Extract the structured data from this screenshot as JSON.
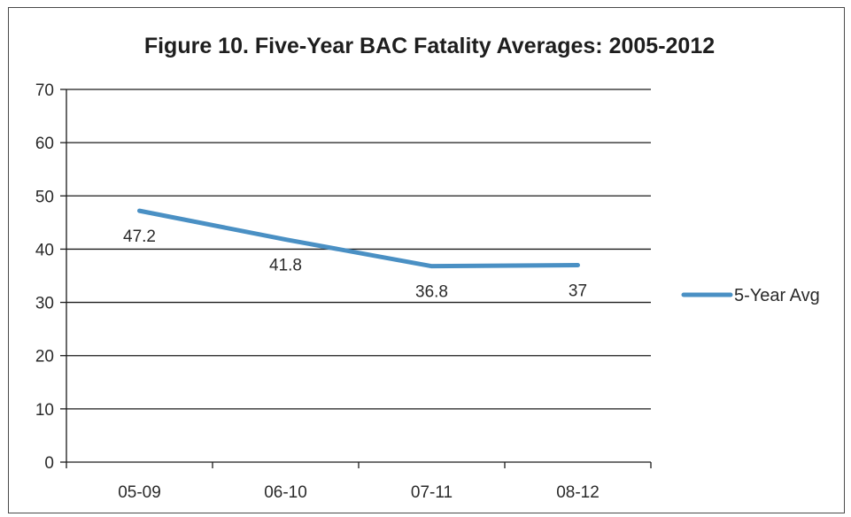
{
  "chart_data": {
    "type": "line",
    "title": "Figure 10. Five-Year BAC Fatality Averages: 2005-2012",
    "xlabel": "",
    "ylabel": "",
    "categories": [
      "05-09",
      "06-10",
      "07-11",
      "08-12"
    ],
    "series": [
      {
        "name": "5-Year Avg",
        "values": [
          47.2,
          41.8,
          36.8,
          37
        ],
        "labels": [
          "47.2",
          "41.8",
          "36.8",
          "37"
        ],
        "color": "#4a90c4"
      }
    ],
    "ylim": [
      0,
      70
    ],
    "yticks": [
      0,
      10,
      20,
      30,
      40,
      50,
      60,
      70
    ],
    "ytick_labels": [
      "0",
      "10",
      "20",
      "30",
      "40",
      "50",
      "60",
      "70"
    ],
    "grid": true,
    "legend_position": "right",
    "colors": {
      "grid": "#1a1a1a",
      "axis": "#1a1a1a",
      "text": "#2a2a2a"
    }
  }
}
